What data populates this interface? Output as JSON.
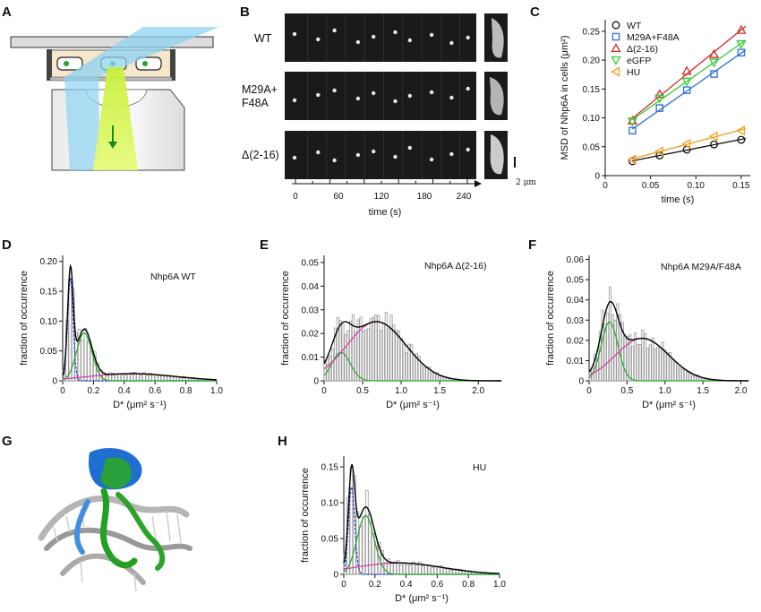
{
  "panel_letters": {
    "a": "A",
    "b": "B",
    "c": "C",
    "d": "D",
    "e": "E",
    "f": "F",
    "g": "G",
    "h": "H"
  },
  "panel_b": {
    "rows": [
      "WT",
      "M29A+",
      "F48A",
      "Δ(2-16)"
    ],
    "xticks": [
      "0",
      "60",
      "120",
      "180",
      "240"
    ],
    "xlabel": "time (s)",
    "scale_label": "2 μm"
  },
  "colors": {
    "wt": "#111111",
    "m29a": "#2a6fd6",
    "d216": "#d62728",
    "egfp": "#33cc33",
    "hu": "#f0a020",
    "hist": "#9a9a9a",
    "fit_total": "#000000",
    "fit_slow": "#1f3fbf",
    "fit_mid": "#22aa22",
    "fit_fast": "#dd33aa"
  },
  "chart_data": [
    {
      "id": "C",
      "type": "scatter",
      "xlabel": "time (s)",
      "ylabel": "MSD of Nhp6A in cells (μm²)",
      "xlim": [
        0,
        0.16
      ],
      "ylim": [
        0,
        0.27
      ],
      "xticks": [
        "0",
        "0.05",
        "0.10",
        "0.15"
      ],
      "yticks": [
        "0",
        "0.05",
        "0.10",
        "0.15",
        "0.20",
        "0.25"
      ],
      "legend": "top-left",
      "x": [
        0.03,
        0.06,
        0.09,
        0.12,
        0.15
      ],
      "series": [
        {
          "name": "WT",
          "marker": "circle",
          "values": [
            0.025,
            0.035,
            0.045,
            0.054,
            0.062
          ]
        },
        {
          "name": "M29A+F48A",
          "marker": "square",
          "values": [
            0.078,
            0.117,
            0.148,
            0.176,
            0.213
          ]
        },
        {
          "name": "Δ(2-16)",
          "marker": "triangle-up",
          "values": [
            0.095,
            0.141,
            0.181,
            0.21,
            0.252
          ]
        },
        {
          "name": "eGFP",
          "marker": "triangle-down",
          "values": [
            0.094,
            0.134,
            0.163,
            0.196,
            0.228
          ]
        },
        {
          "name": "HU",
          "marker": "triangle-left",
          "values": [
            0.028,
            0.042,
            0.055,
            0.068,
            0.078
          ]
        }
      ]
    },
    {
      "id": "D",
      "type": "bar",
      "annotation": "Nhp6A WT",
      "xlabel": "D* (μm² s⁻¹)",
      "ylabel": "fraction of occurrence",
      "xlim": [
        0,
        1.0
      ],
      "ylim": [
        0,
        0.21
      ],
      "xticks": [
        "0",
        "0.2",
        "0.4",
        "0.6",
        "0.8",
        "1.0"
      ],
      "yticks": [
        "0",
        "0.05",
        "0.10",
        "0.15",
        "0.20"
      ],
      "bin_width": 0.02,
      "components": [
        {
          "name": "slow",
          "mu": 0.05,
          "sigma": 0.018,
          "amp": 0.172
        },
        {
          "name": "mid",
          "mu": 0.14,
          "sigma": 0.05,
          "amp": 0.08
        },
        {
          "name": "fast",
          "mu": 0.45,
          "sigma": 0.28,
          "amp": 0.012
        }
      ]
    },
    {
      "id": "E",
      "type": "bar",
      "annotation": "Nhp6A Δ(2-16)",
      "xlabel": "D* (μm² s⁻¹)",
      "ylabel": "fraction of occurrence",
      "xlim": [
        0,
        2.3
      ],
      "ylim": [
        0,
        0.053
      ],
      "xticks": [
        "0",
        "0.5",
        "1.0",
        "1.5",
        "2.0"
      ],
      "yticks": [
        "0",
        "0.01",
        "0.02",
        "0.03",
        "0.04",
        "0.05"
      ],
      "bin_width": 0.033,
      "components": [
        {
          "name": "mid",
          "mu": 0.22,
          "sigma": 0.12,
          "amp": 0.012
        },
        {
          "name": "fast",
          "mu": 0.68,
          "sigma": 0.38,
          "amp": 0.025
        }
      ]
    },
    {
      "id": "F",
      "type": "bar",
      "annotation": "Nhp6A M29A/F48A",
      "xlabel": "D* (μm² s⁻¹)",
      "ylabel": "fraction of occurrence",
      "xlim": [
        0,
        2.1
      ],
      "ylim": [
        0,
        0.062
      ],
      "xticks": [
        "0",
        "0.5",
        "1.0",
        "1.5",
        "2.0"
      ],
      "yticks": [
        "0",
        "0.01",
        "0.02",
        "0.03",
        "0.04",
        "0.05",
        "0.06"
      ],
      "bin_width": 0.033,
      "components": [
        {
          "name": "mid",
          "mu": 0.27,
          "sigma": 0.11,
          "amp": 0.029
        },
        {
          "name": "fast",
          "mu": 0.7,
          "sigma": 0.35,
          "amp": 0.021
        }
      ]
    },
    {
      "id": "H",
      "type": "bar",
      "annotation": "HU",
      "xlabel": "D* (μm² s⁻¹)",
      "ylabel": "fraction of occurrence",
      "xlim": [
        0,
        1.0
      ],
      "ylim": [
        0,
        0.165
      ],
      "xticks": [
        "0",
        "0.2",
        "0.4",
        "0.6",
        "0.8",
        "1.0"
      ],
      "yticks": [
        "0",
        "0.05",
        "0.10",
        "0.15"
      ],
      "bin_width": 0.02,
      "components": [
        {
          "name": "slow",
          "mu": 0.05,
          "sigma": 0.02,
          "amp": 0.122
        },
        {
          "name": "mid",
          "mu": 0.14,
          "sigma": 0.055,
          "amp": 0.082
        },
        {
          "name": "fast",
          "mu": 0.35,
          "sigma": 0.28,
          "amp": 0.016
        }
      ]
    }
  ]
}
